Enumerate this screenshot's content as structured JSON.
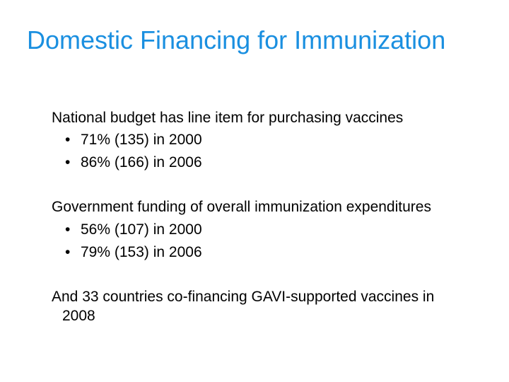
{
  "slide": {
    "title": "Domestic Financing for Immunization",
    "title_color": "#1a8fe0",
    "sections": [
      {
        "heading": "National budget has line item for purchasing vaccines",
        "bullets": [
          "71% (135) in 2000",
          "86% (166) in 2006"
        ]
      },
      {
        "heading": "Government funding of overall immunization expenditures",
        "bullets": [
          "56% (107) in 2000",
          "79% (153) in 2006"
        ]
      },
      {
        "heading": "And 33 countries co-financing GAVI-supported vaccines in",
        "heading_cont": "2008",
        "bullets": []
      }
    ],
    "bullet_glyph": "•"
  }
}
